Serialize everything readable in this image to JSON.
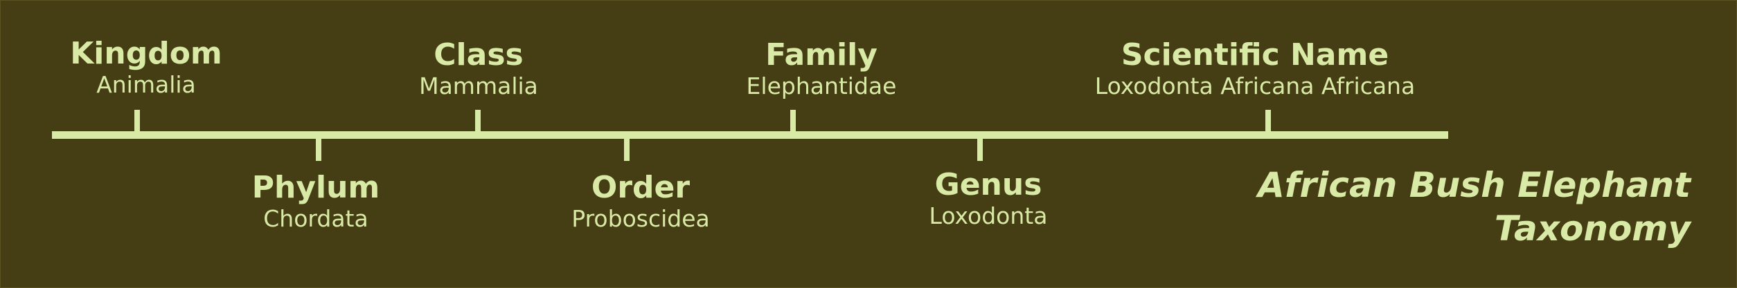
{
  "colors": {
    "background": "#453d13",
    "foreground": "#d9e9a6"
  },
  "diagram": {
    "title_line1": "African Bush Elephant",
    "title_line2": "Taxonomy",
    "ranks": [
      {
        "rank": "Kingdom",
        "taxon": "Animalia",
        "side": "above"
      },
      {
        "rank": "Phylum",
        "taxon": "Chordata",
        "side": "below"
      },
      {
        "rank": "Class",
        "taxon": "Mammalia",
        "side": "above"
      },
      {
        "rank": "Order",
        "taxon": "Proboscidea",
        "side": "below"
      },
      {
        "rank": "Family",
        "taxon": "Elephantidae",
        "side": "above"
      },
      {
        "rank": "Genus",
        "taxon": "Loxodonta",
        "side": "below"
      },
      {
        "rank": "Scientific Name",
        "taxon": "Loxodonta Africana Africana",
        "side": "above"
      }
    ]
  }
}
